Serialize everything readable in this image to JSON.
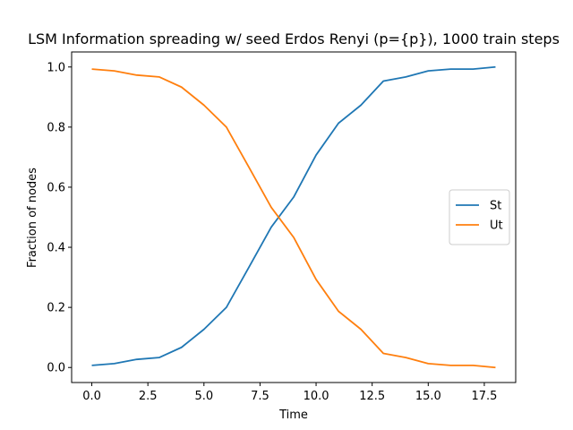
{
  "chart_data": {
    "type": "line",
    "title": "LSM Information spreading w/ seed Erdos Renyi (p={p}), 1000 train steps",
    "xlabel": "Time",
    "ylabel": "Fraction of nodes",
    "xlim": [
      -0.9,
      18.9
    ],
    "ylim": [
      -0.05,
      1.05
    ],
    "xticks": [
      0.0,
      2.5,
      5.0,
      7.5,
      10.0,
      12.5,
      15.0,
      17.5
    ],
    "xtick_labels": [
      "0.0",
      "2.5",
      "5.0",
      "7.5",
      "10.0",
      "12.5",
      "15.0",
      "17.5"
    ],
    "yticks": [
      0.0,
      0.2,
      0.4,
      0.6,
      0.8,
      1.0
    ],
    "ytick_labels": [
      "0.0",
      "0.2",
      "0.4",
      "0.6",
      "0.8",
      "1.0"
    ],
    "grid": false,
    "legend_position": "center-right",
    "x": [
      0,
      1,
      2,
      3,
      4,
      5,
      6,
      7,
      8,
      9,
      10,
      11,
      12,
      13,
      14,
      15,
      16,
      17,
      18
    ],
    "series": [
      {
        "name": "St",
        "color": "#1f77b4",
        "values": [
          0.007,
          0.013,
          0.027,
          0.033,
          0.067,
          0.127,
          0.2,
          0.333,
          0.467,
          0.567,
          0.707,
          0.813,
          0.873,
          0.953,
          0.967,
          0.987,
          0.993,
          0.993,
          1.0
        ]
      },
      {
        "name": "Ut",
        "color": "#ff7f0e",
        "values": [
          0.993,
          0.987,
          0.973,
          0.967,
          0.933,
          0.873,
          0.8,
          0.667,
          0.533,
          0.433,
          0.293,
          0.187,
          0.127,
          0.047,
          0.033,
          0.013,
          0.007,
          0.007,
          0.0
        ]
      }
    ]
  }
}
